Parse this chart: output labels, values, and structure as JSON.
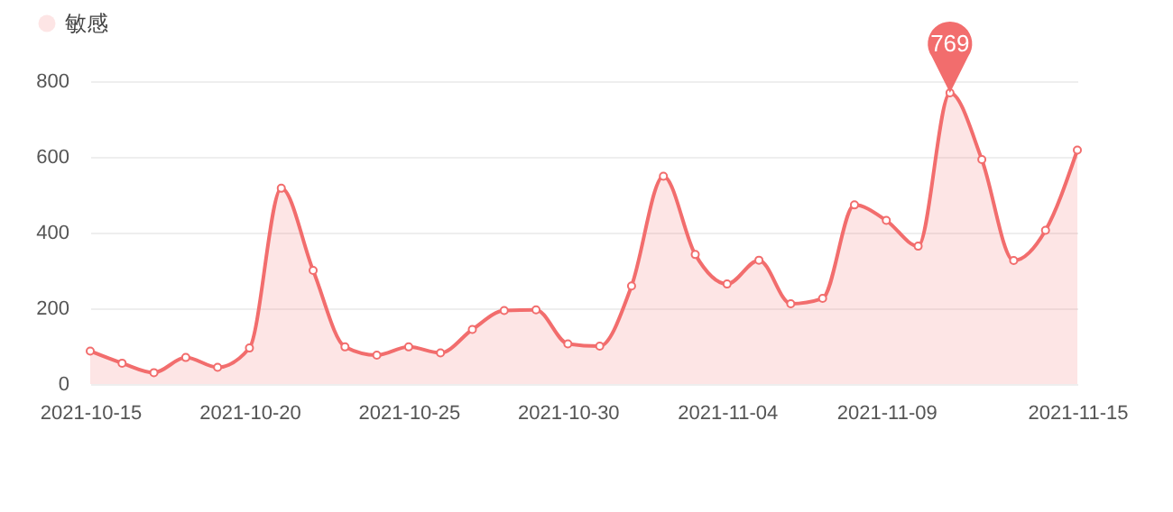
{
  "chart_data": {
    "type": "area",
    "x": [
      "2021-10-15",
      "2021-10-16",
      "2021-10-17",
      "2021-10-18",
      "2021-10-19",
      "2021-10-20",
      "2021-10-21",
      "2021-10-22",
      "2021-10-23",
      "2021-10-24",
      "2021-10-25",
      "2021-10-26",
      "2021-10-27",
      "2021-10-28",
      "2021-10-29",
      "2021-10-30",
      "2021-10-31",
      "2021-11-01",
      "2021-11-02",
      "2021-11-03",
      "2021-11-04",
      "2021-11-05",
      "2021-11-06",
      "2021-11-07",
      "2021-11-08",
      "2021-11-09",
      "2021-11-10",
      "2021-11-11",
      "2021-11-12",
      "2021-11-13",
      "2021-11-14",
      "2021-11-15"
    ],
    "series": [
      {
        "name": "敏感",
        "color": "#f26d6d",
        "values": [
          87,
          55,
          30,
          70,
          44,
          95,
          517,
          300,
          98,
          76,
          98,
          82,
          144,
          194,
          196,
          106,
          100,
          259,
          549,
          342,
          264,
          327,
          212,
          226,
          473,
          432,
          364,
          769,
          593,
          326,
          406,
          618
        ]
      }
    ],
    "xlim": [
      "2021-10-15",
      "2021-11-15"
    ],
    "xticks": [
      "2021-10-15",
      "2021-10-20",
      "2021-10-25",
      "2021-10-30",
      "2021-11-04",
      "2021-11-09",
      "2021-11-15"
    ],
    "ylim": [
      0,
      800
    ],
    "yticks": [
      0,
      200,
      400,
      600,
      800
    ],
    "grid": "y",
    "legend": "top left",
    "marker": "circle",
    "annotations": [
      {
        "text": "769",
        "x": "2021-11-11",
        "y": 769
      }
    ]
  }
}
